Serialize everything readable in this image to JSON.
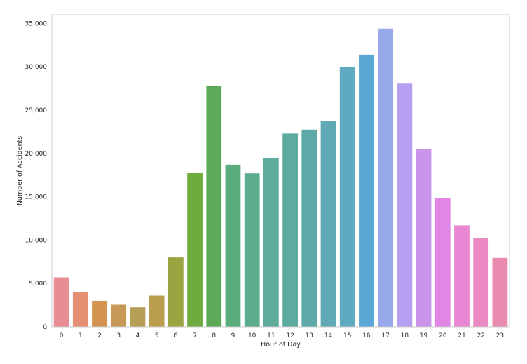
{
  "chart_data": {
    "type": "bar",
    "title": "",
    "xlabel": "Hour of Day",
    "ylabel": "Number of Accidents",
    "categories": [
      "0",
      "1",
      "2",
      "3",
      "4",
      "5",
      "6",
      "7",
      "8",
      "9",
      "10",
      "11",
      "12",
      "13",
      "14",
      "15",
      "16",
      "17",
      "18",
      "19",
      "20",
      "21",
      "22",
      "23"
    ],
    "values": [
      5700,
      4000,
      3000,
      2550,
      2250,
      3600,
      8000,
      17800,
      27750,
      18700,
      17700,
      19500,
      22300,
      22750,
      23750,
      30000,
      31400,
      34400,
      28050,
      20550,
      14850,
      11700,
      10200,
      7950
    ],
    "ylim": [
      0,
      36000
    ],
    "yticks": [
      0,
      5000,
      10000,
      15000,
      20000,
      25000,
      30000,
      35000
    ],
    "ytick_labels": [
      "0",
      "5,000",
      "10,000",
      "15,000",
      "20,000",
      "25,000",
      "30,000",
      "35,000"
    ],
    "grid": false,
    "legend": "none",
    "colors": [
      "#e98d95",
      "#e48f72",
      "#d59351",
      "#c79957",
      "#b69e57",
      "#ba9e4e",
      "#9aa441",
      "#6fac3f",
      "#5ca958",
      "#5aac7c",
      "#5cad8e",
      "#5eac9b",
      "#5dab9f",
      "#5ea9a8",
      "#60aab6",
      "#5fa9c2",
      "#5aa8d6",
      "#97a9ea",
      "#b49ff0",
      "#c994e9",
      "#e186e5",
      "#ea87d4",
      "#eb8ac2",
      "#e98bb0"
    ]
  }
}
